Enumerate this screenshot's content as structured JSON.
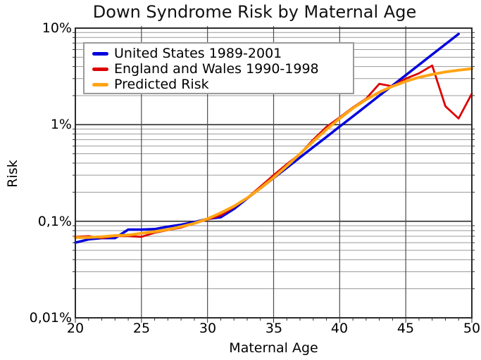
{
  "chart_data": {
    "type": "line",
    "title": "Down Syndrome Risk by Maternal Age",
    "xlabel": "Maternal Age",
    "ylabel": "Risk",
    "x_range": [
      20,
      50
    ],
    "y_scale": "log",
    "y_range_pct": [
      0.01,
      10
    ],
    "grid": true,
    "legend_position": "top-left",
    "x_tick_labels": [
      "20",
      "25",
      "30",
      "35",
      "40",
      "45",
      "50"
    ],
    "x_major_ticks": [
      20,
      25,
      30,
      35,
      40,
      45,
      50
    ],
    "y_tick_labels": [
      "10%",
      "1%",
      "0,1%",
      "0,01%"
    ],
    "y_tick_values": [
      10,
      1,
      0.1,
      0.01
    ],
    "series": [
      {
        "name": "United States 1989-2001",
        "color": "#0000dd",
        "x": [
          20,
          21,
          22,
          23,
          24,
          25,
          26,
          27,
          28,
          29,
          30,
          31,
          32,
          33,
          34,
          35,
          36,
          37,
          38,
          39,
          40,
          41,
          42,
          43,
          44,
          45,
          46,
          47,
          48,
          49
        ],
        "y": [
          0.06,
          0.065,
          0.067,
          0.067,
          0.082,
          0.082,
          0.083,
          0.088,
          0.092,
          0.098,
          0.106,
          0.11,
          0.134,
          0.172,
          0.219,
          0.28,
          0.358,
          0.458,
          0.585,
          0.748,
          0.956,
          1.22,
          1.56,
          2.0,
          2.55,
          3.26,
          4.17,
          5.33,
          6.81,
          8.71
        ]
      },
      {
        "name": "England and Wales 1990-1998",
        "color": "#dd0000",
        "x": [
          20,
          21,
          22,
          23,
          24,
          25,
          26,
          27,
          28,
          29,
          30,
          31,
          32,
          33,
          34,
          35,
          36,
          37,
          38,
          39,
          40,
          41,
          42,
          43,
          44,
          45,
          46,
          47,
          48,
          49,
          50
        ],
        "y": [
          0.069,
          0.07,
          0.067,
          0.07,
          0.07,
          0.069,
          0.076,
          0.081,
          0.086,
          0.095,
          0.104,
          0.115,
          0.14,
          0.175,
          0.228,
          0.3,
          0.39,
          0.5,
          0.7,
          0.95,
          1.19,
          1.51,
          1.86,
          2.65,
          2.5,
          3.0,
          3.4,
          4.1,
          1.55,
          1.16,
          2.1
        ]
      },
      {
        "name": "Predicted Risk",
        "color": "#ffa415",
        "x": [
          20,
          21,
          22,
          23,
          24,
          25,
          26,
          27,
          28,
          29,
          30,
          31,
          32,
          33,
          34,
          35,
          36,
          37,
          38,
          39,
          40,
          41,
          42,
          43,
          44,
          45,
          46,
          47,
          48,
          49,
          50
        ],
        "y": [
          0.068,
          0.068,
          0.069,
          0.071,
          0.072,
          0.075,
          0.078,
          0.082,
          0.088,
          0.095,
          0.106,
          0.122,
          0.143,
          0.174,
          0.219,
          0.283,
          0.374,
          0.5,
          0.671,
          0.893,
          1.16,
          1.48,
          1.82,
          2.17,
          2.5,
          2.81,
          3.09,
          3.32,
          3.52,
          3.67,
          3.8
        ]
      }
    ],
    "colors": {
      "frame": "#2b2b2b",
      "grid_major": "#2b2b2b",
      "grid_vertical": "#4d4d4d",
      "grid_minor": "#9a9a9a"
    }
  }
}
